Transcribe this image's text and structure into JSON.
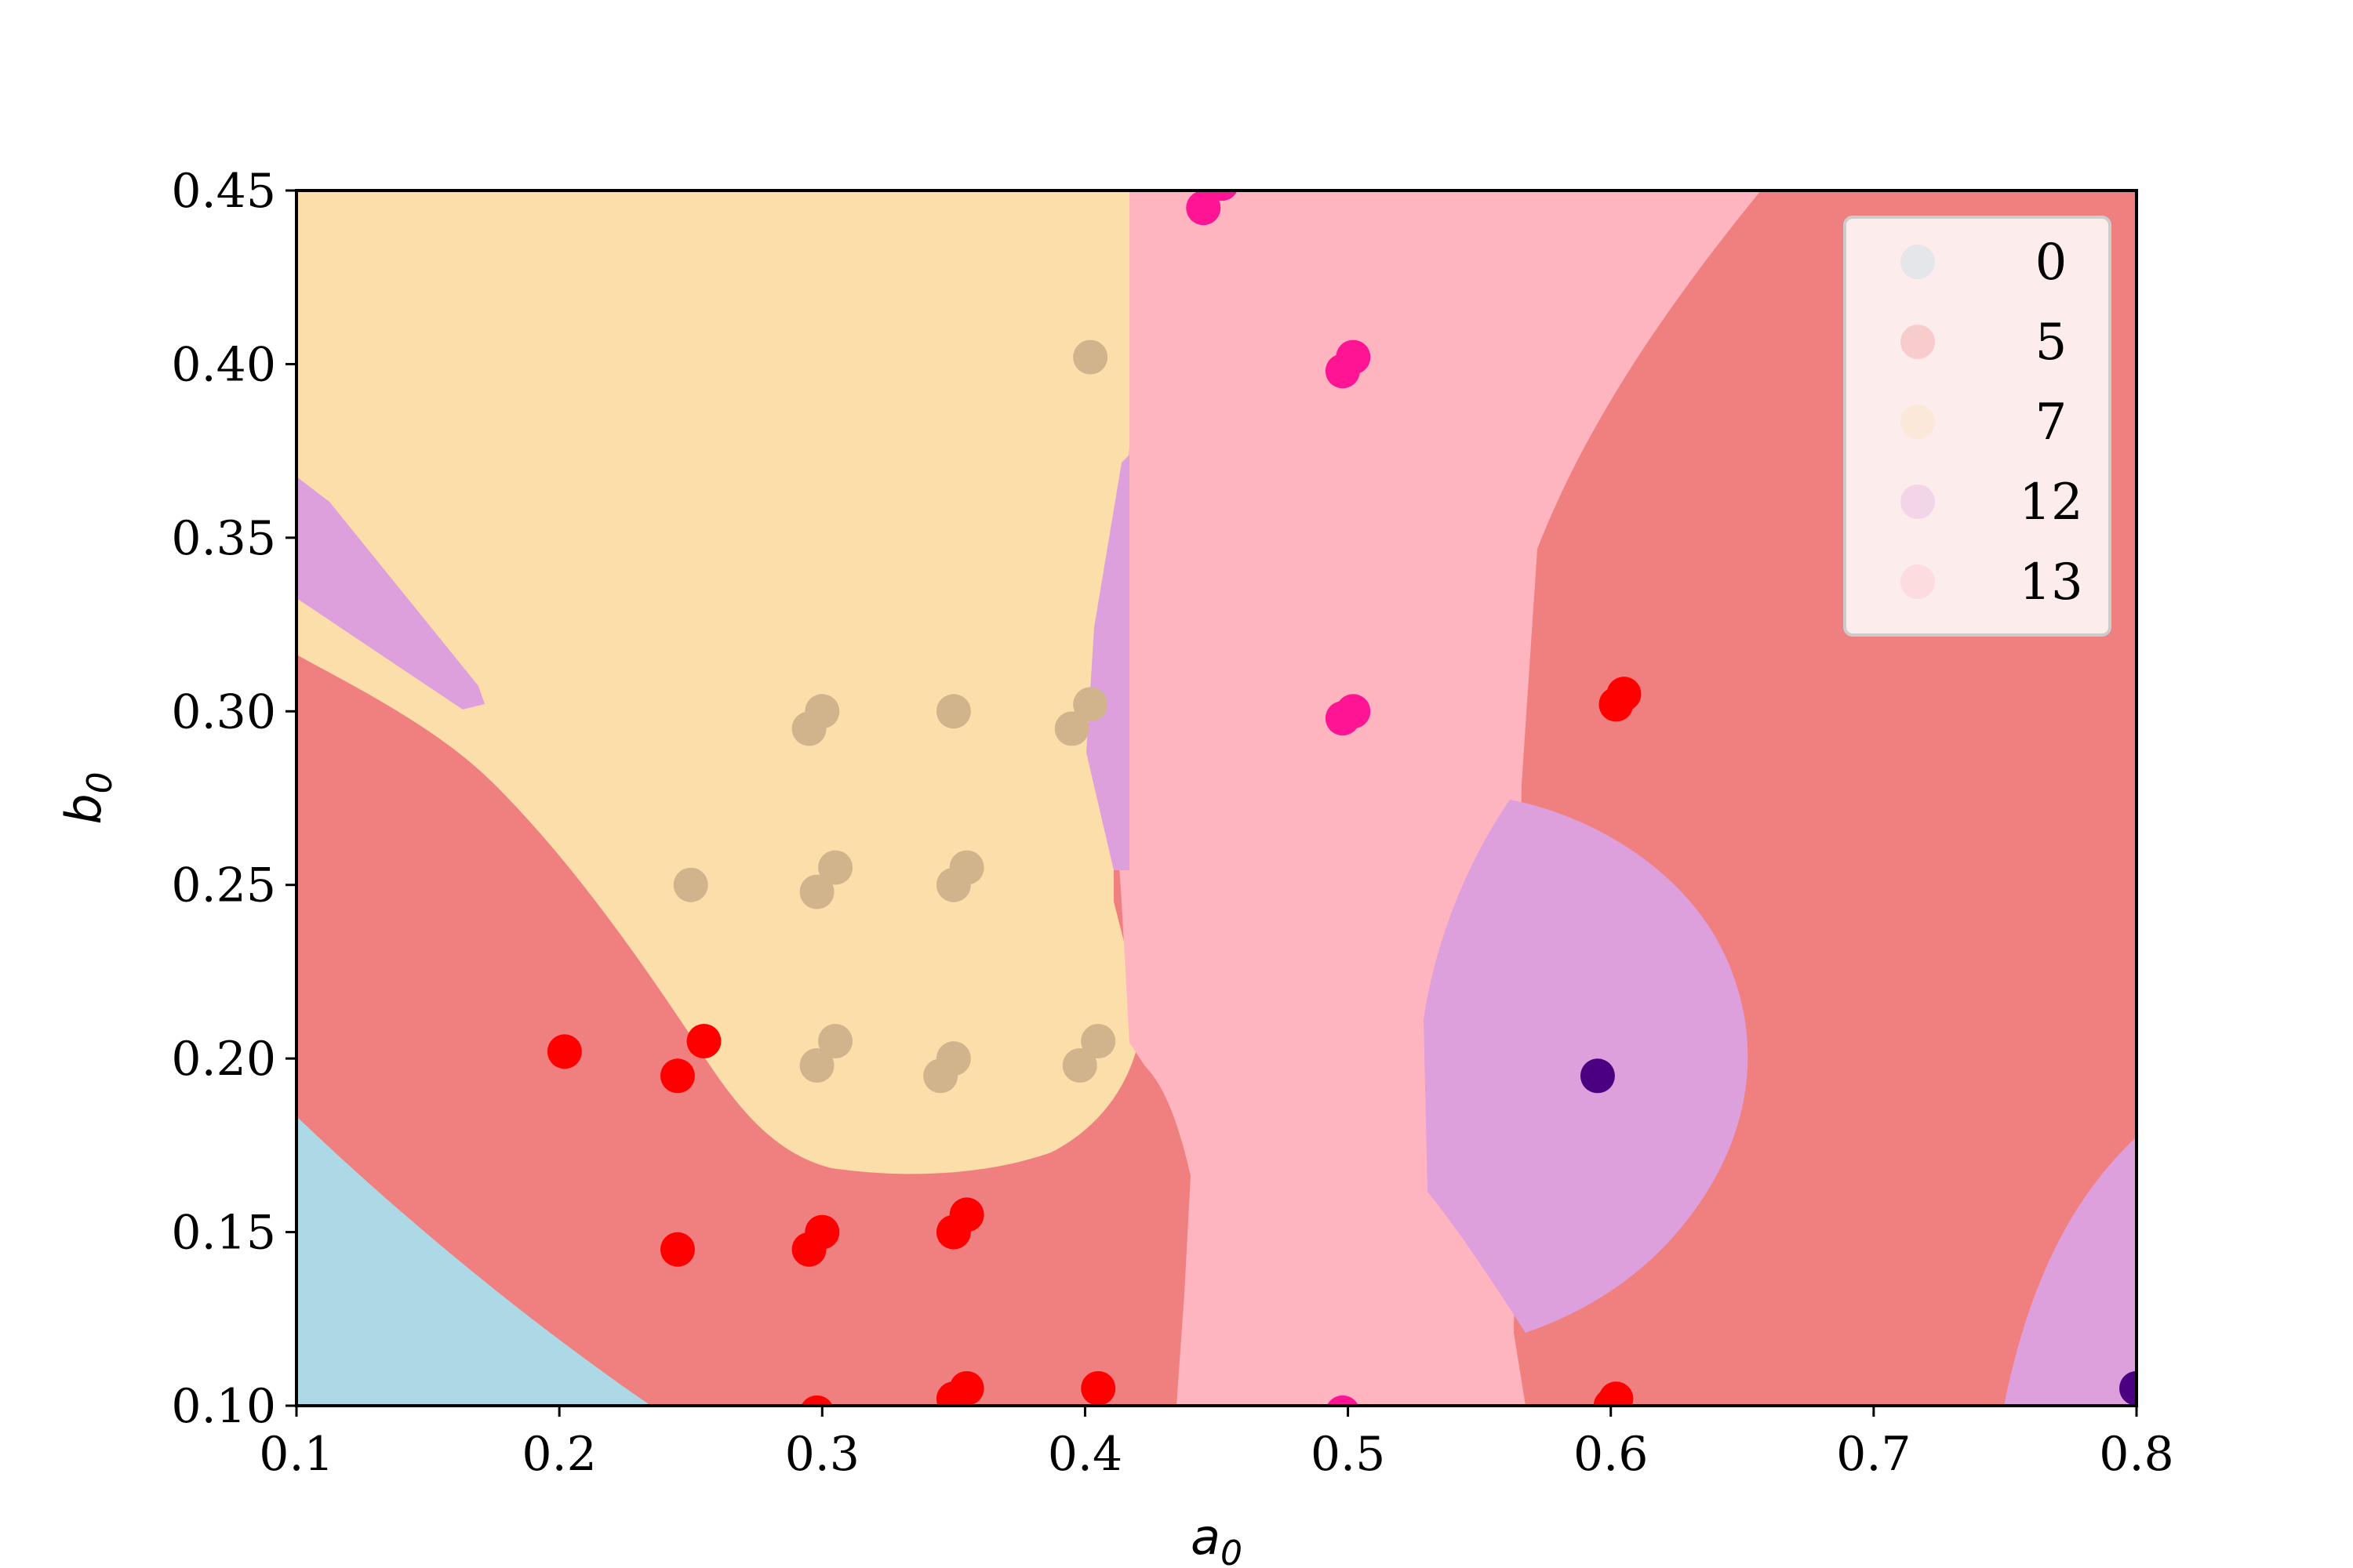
{
  "chart_data": {
    "type": "scatter",
    "title": "",
    "xlabel": "a",
    "xlabel_sub": "0",
    "ylabel": "b",
    "ylabel_sub": "0",
    "xlim": [
      0.1,
      0.8
    ],
    "ylim": [
      0.1,
      0.45
    ],
    "xticks": [
      "0.1",
      "0.2",
      "0.3",
      "0.4",
      "0.5",
      "0.6",
      "0.7",
      "0.8"
    ],
    "yticks": [
      "0.10",
      "0.15",
      "0.20",
      "0.25",
      "0.30",
      "0.35",
      "0.40",
      "0.45"
    ],
    "grid": false,
    "legend_position": "top-right",
    "region_colors": {
      "0": "#add8e6",
      "5": "#f08080",
      "7": "#fcdeab",
      "12": "#dda0dd",
      "13": "#ffb5c0"
    },
    "legend": [
      {
        "label": "0",
        "color": "#add8e6"
      },
      {
        "label": "5",
        "color": "#f08080"
      },
      {
        "label": "7",
        "color": "#fcdeab"
      },
      {
        "label": "12",
        "color": "#dda0dd"
      },
      {
        "label": "13",
        "color": "#ffb5c0"
      }
    ],
    "series": [
      {
        "color": "#ff0000",
        "points": [
          [
            0.202,
            0.202
          ],
          [
            0.245,
            0.195
          ],
          [
            0.255,
            0.205
          ],
          [
            0.245,
            0.145
          ],
          [
            0.295,
            0.145
          ],
          [
            0.3,
            0.15
          ],
          [
            0.35,
            0.15
          ],
          [
            0.355,
            0.155
          ],
          [
            0.298,
            0.098
          ],
          [
            0.35,
            0.102
          ],
          [
            0.355,
            0.105
          ],
          [
            0.405,
            0.105
          ],
          [
            0.602,
            0.302
          ],
          [
            0.605,
            0.305
          ],
          [
            0.6,
            0.1
          ],
          [
            0.602,
            0.102
          ]
        ]
      },
      {
        "color": "#d2b48c",
        "points": [
          [
            0.402,
            0.402
          ],
          [
            0.295,
            0.295
          ],
          [
            0.3,
            0.3
          ],
          [
            0.35,
            0.3
          ],
          [
            0.395,
            0.295
          ],
          [
            0.402,
            0.302
          ],
          [
            0.25,
            0.25
          ],
          [
            0.298,
            0.248
          ],
          [
            0.305,
            0.255
          ],
          [
            0.35,
            0.25
          ],
          [
            0.355,
            0.255
          ],
          [
            0.298,
            0.198
          ],
          [
            0.305,
            0.205
          ],
          [
            0.345,
            0.195
          ],
          [
            0.35,
            0.2
          ],
          [
            0.398,
            0.198
          ],
          [
            0.405,
            0.205
          ]
        ]
      },
      {
        "color": "#ff1493",
        "points": [
          [
            0.445,
            0.445
          ],
          [
            0.452,
            0.452
          ],
          [
            0.498,
            0.398
          ],
          [
            0.502,
            0.402
          ],
          [
            0.498,
            0.298
          ],
          [
            0.502,
            0.3
          ],
          [
            0.498,
            0.098
          ]
        ]
      },
      {
        "color": "#4b0082",
        "points": [
          [
            0.595,
            0.195
          ],
          [
            0.8,
            0.105
          ]
        ]
      }
    ]
  }
}
